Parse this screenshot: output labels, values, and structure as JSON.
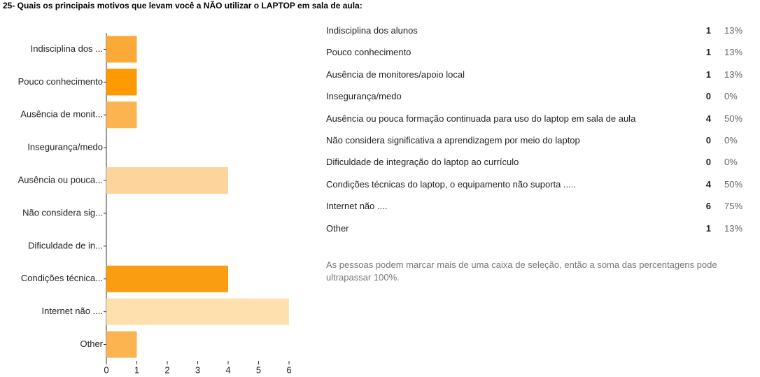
{
  "title": "25- Quais os principais motivos que levam você a NÃO utilizar o LAPTOP em sala de aula:",
  "chart_data": {
    "type": "barh",
    "categories": [
      "Indisciplina dos ...",
      "Pouco conhecimento",
      "Ausência de monit...",
      "Insegurança/medo",
      "Ausência ou pouca...",
      "Não considera sig...",
      "Dificuldade de in...",
      "Condições técnica...",
      "Internet não ....",
      "Other"
    ],
    "values": [
      1,
      1,
      1,
      0,
      4,
      0,
      0,
      4,
      6,
      1
    ],
    "colors": [
      "#fbaa3a",
      "#ff9900",
      "#fbb450",
      "#fbb450",
      "#fdd59c",
      "#fbb450",
      "#fbb450",
      "#fa9d10",
      "#fedfae",
      "#fbb450"
    ],
    "xlim": [
      0,
      6
    ],
    "xticks": [
      0,
      1,
      2,
      3,
      4,
      5,
      6
    ]
  },
  "table": {
    "rows": [
      [
        "Indisciplina dos alunos",
        "1",
        "13%"
      ],
      [
        "Pouco conhecimento",
        "1",
        "13%"
      ],
      [
        "Ausência de monitores/apoio local",
        "1",
        "13%"
      ],
      [
        "Insegurança/medo",
        "0",
        "0%"
      ],
      [
        "Ausência ou pouca formação continuada para uso do laptop em sala de aula",
        "4",
        "50%"
      ],
      [
        "Não considera significativa a aprendizagem por meio do laptop",
        "0",
        "0%"
      ],
      [
        "Dificuldade de integração do laptop ao currículo",
        "0",
        "0%"
      ],
      [
        "Condições técnicas do laptop, o equipamento não suporta .....",
        "4",
        "50%"
      ],
      [
        "Internet não ....",
        "6",
        "75%"
      ],
      [
        "Other",
        "1",
        "13%"
      ]
    ]
  },
  "note": "As pessoas podem marcar mais de uma caixa de seleção, então a soma das percentagens pode ultrapassar 100%."
}
